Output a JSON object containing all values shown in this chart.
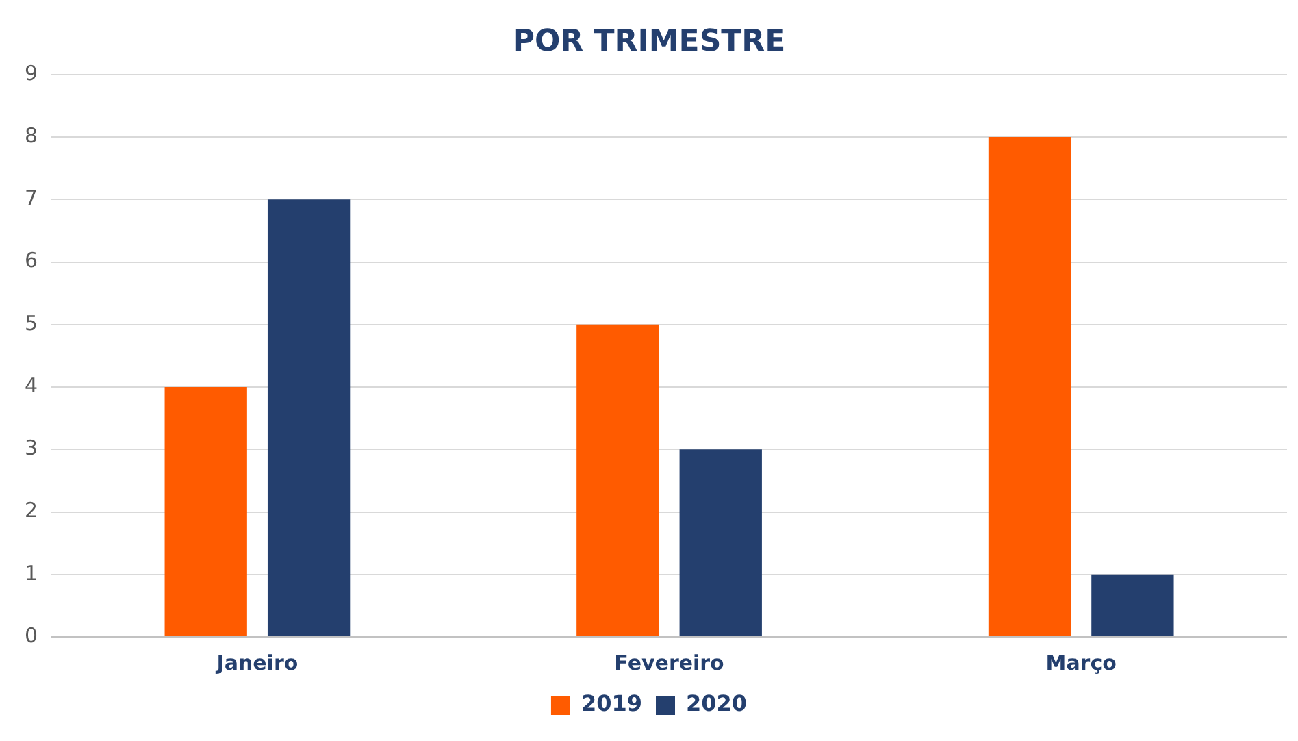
{
  "chart_data": {
    "type": "bar",
    "title": "POR TRIMESTRE",
    "categories": [
      "Janeiro",
      "Fevereiro",
      "Março"
    ],
    "series": [
      {
        "name": "2019",
        "color": "#ff5b00",
        "values": [
          4,
          5,
          8
        ]
      },
      {
        "name": "2020",
        "color": "#243f6e",
        "values": [
          7,
          3,
          1
        ]
      }
    ],
    "ylim": [
      0,
      9
    ],
    "yticks": [
      0,
      1,
      2,
      3,
      4,
      5,
      6,
      7,
      8,
      9
    ],
    "grid": "y",
    "legend": "bottom"
  }
}
